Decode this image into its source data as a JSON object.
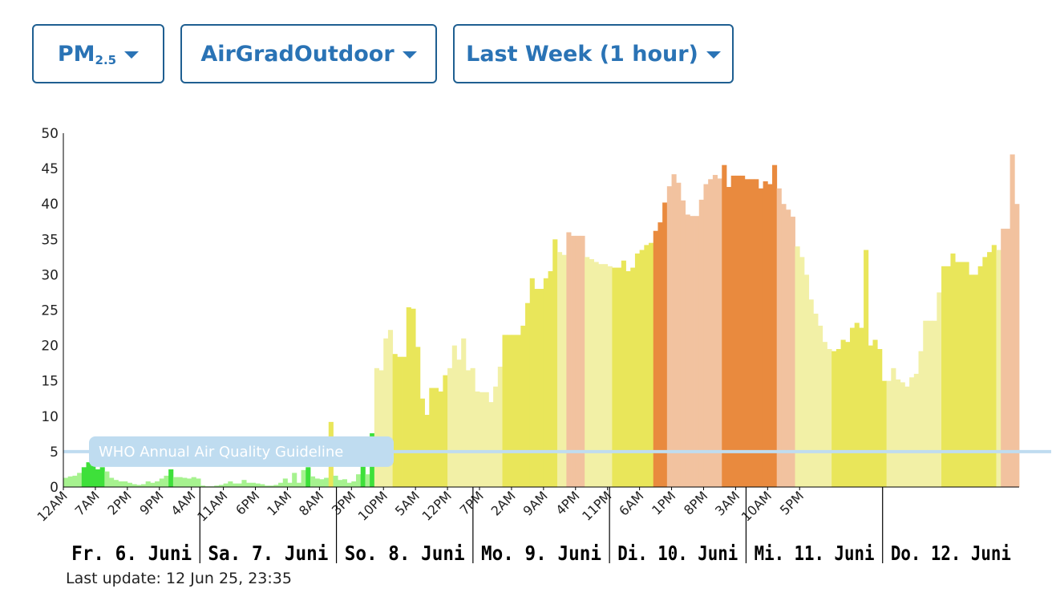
{
  "toolbar": {
    "metric": {
      "label": "PM",
      "subscript": "2.5"
    },
    "sensor": {
      "label": "AirGradOutdoor"
    },
    "range": {
      "label": "Last Week (1 hour)"
    }
  },
  "last_update": "Last update: 12 Jun 25, 23:35",
  "colors": {
    "good": "#3ee03a",
    "good_light": "#a6f28f",
    "moderate": "#e9e65a",
    "moderate_light": "#f2f0a6",
    "unhealthy_sensitive": "#e98a3e",
    "unhealthy_sensitive_light": "#f2c29f",
    "who_line": "#bfdcf0",
    "axis": "#000000",
    "accent": "#2a73b5"
  },
  "chart_data": {
    "type": "bar",
    "ylim": [
      0,
      50
    ],
    "yticks": [
      0,
      5,
      10,
      15,
      20,
      25,
      30,
      35,
      40,
      45,
      50
    ],
    "grid": false,
    "xtick_labels": [
      "12AM",
      "7AM",
      "2PM",
      "9PM",
      "4AM",
      "11AM",
      "6PM",
      "1AM",
      "8AM",
      "3PM",
      "10PM",
      "5AM",
      "12PM",
      "7PM",
      "2AM",
      "9AM",
      "4PM",
      "11PM",
      "6AM",
      "1PM",
      "8PM",
      "3AM",
      "10AM",
      "5PM"
    ],
    "day_labels": [
      "Fr. 6. Juni",
      "Sa. 7. Juni",
      "So. 8. Juni",
      "Mo. 9. Juni",
      "Di. 10. Juni",
      "Mi. 11. Juni",
      "Do. 12. Juni"
    ],
    "reference_line": {
      "value": 5,
      "label": "WHO Annual Air Quality Guideline"
    },
    "values": [
      1.3,
      1.5,
      1.6,
      2.0,
      2.8,
      3.5,
      3.0,
      2.5,
      2.8,
      2.2,
      1.3,
      1.0,
      0.8,
      0.8,
      0.6,
      0.4,
      0.3,
      0.4,
      0.8,
      0.6,
      0.8,
      1.2,
      1.6,
      2.5,
      1.4,
      1.4,
      1.3,
      1.2,
      1.4,
      1.2,
      0.2,
      0.1,
      0.1,
      0.2,
      0.3,
      0.5,
      0.8,
      0.5,
      0.5,
      1.0,
      0.6,
      0.6,
      0.5,
      0.4,
      0.2,
      0.2,
      0.3,
      0.6,
      1.2,
      0.6,
      2.0,
      0.6,
      2.4,
      2.8,
      1.5,
      1.2,
      1.1,
      1.3,
      9.2,
      1.6,
      1.0,
      1.1,
      0.6,
      0.8,
      1.8,
      3.2,
      1.8,
      7.6,
      16.8,
      16.5,
      21.0,
      22.2,
      18.8,
      18.4,
      18.4,
      25.4,
      25.2,
      19.8,
      12.5,
      10.2,
      14.0,
      14.0,
      13.5,
      15.8,
      16.8,
      20.0,
      18.0,
      21.0,
      16.5,
      16.8,
      13.5,
      13.4,
      13.4,
      12.0,
      14.2,
      17.0,
      21.5,
      21.5,
      21.5,
      21.5,
      22.8,
      26.0,
      29.5,
      28.0,
      28.0,
      29.5,
      30.5,
      35.0,
      33.2,
      32.8,
      36.0,
      35.5,
      35.5,
      35.5,
      32.5,
      32.2,
      31.8,
      31.5,
      31.5,
      31.2,
      31.0,
      31.0,
      32.0,
      30.5,
      31.0,
      33.0,
      33.5,
      34.2,
      34.5,
      36.2,
      37.4,
      40.2,
      42.5,
      44.2,
      43.0,
      40.5,
      38.5,
      38.3,
      38.3,
      40.6,
      42.8,
      43.5,
      44.1,
      43.6,
      45.5,
      42.4,
      44.0,
      44.0,
      44.0,
      43.5,
      43.5,
      43.5,
      42.2,
      43.2,
      42.8,
      45.5,
      42.2,
      40.0,
      39.2,
      38.2,
      34.0,
      32.5,
      30.0,
      26.5,
      24.5,
      22.8,
      20.5,
      19.5,
      19.2,
      19.5,
      20.8,
      20.5,
      22.5,
      23.2,
      22.5,
      33.5,
      20.0,
      20.8,
      19.5,
      15.0,
      15.0,
      16.8,
      15.2,
      14.8,
      14.2,
      15.5,
      16.0,
      19.2,
      23.5,
      23.5,
      23.5,
      27.5,
      31.2,
      31.2,
      33.0,
      31.8,
      31.8,
      31.8,
      30.0,
      30.0,
      31.2,
      32.5,
      33.2,
      34.2,
      33.5,
      36.5,
      36.5,
      47.0,
      40.0
    ]
  }
}
